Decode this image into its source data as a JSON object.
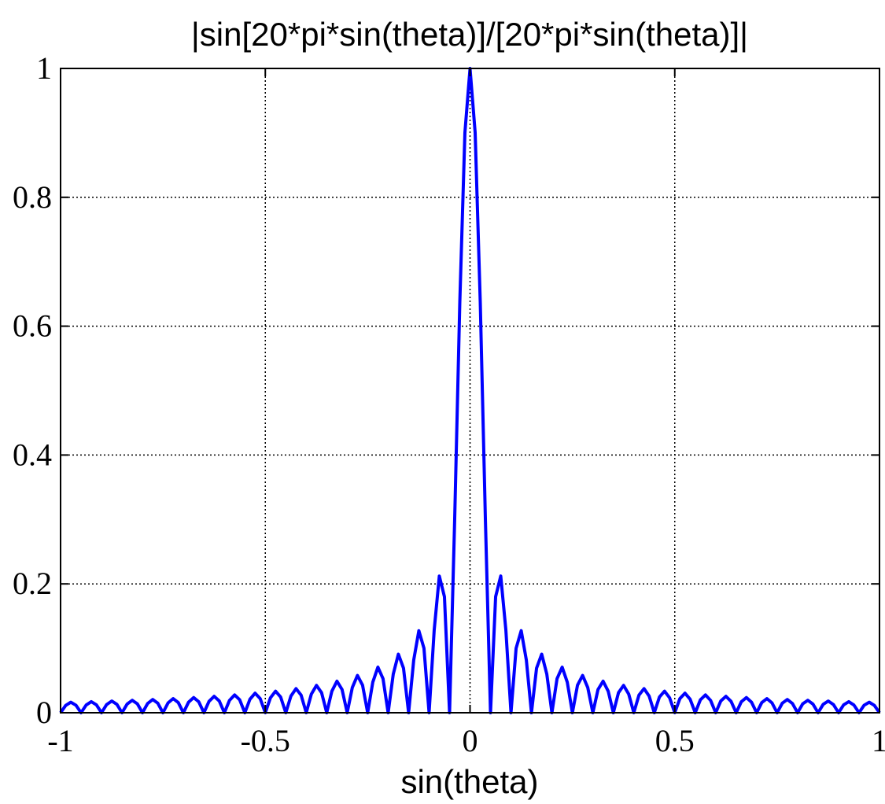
{
  "chart_data": {
    "type": "line",
    "title": "|sin[20*pi*sin(theta)]/[20*pi*sin(theta)]|",
    "xlabel": "sin(theta)",
    "ylabel": "",
    "xlim": [
      -1,
      1
    ],
    "ylim": [
      0,
      1
    ],
    "x_ticks": [
      -1,
      -0.5,
      0,
      0.5,
      1
    ],
    "x_tick_labels": [
      "-1",
      "-0.5",
      "0",
      "0.5",
      "1"
    ],
    "y_ticks": [
      0,
      0.2,
      0.4,
      0.6,
      0.8,
      1
    ],
    "y_tick_labels": [
      "0",
      "0.2",
      "0.4",
      "0.6",
      "0.8",
      "1"
    ],
    "grid": true,
    "grid_style": "dotted",
    "line_color": "#0000ff",
    "axis_color": "#000000",
    "series": [
      {
        "function": "abs(sin(20*pi*x)/(20*pi*x))",
        "x_step": 0.0125,
        "peak": {
          "x": 0,
          "y": 1
        },
        "first_sidelobe_y": 0.217
      }
    ]
  }
}
